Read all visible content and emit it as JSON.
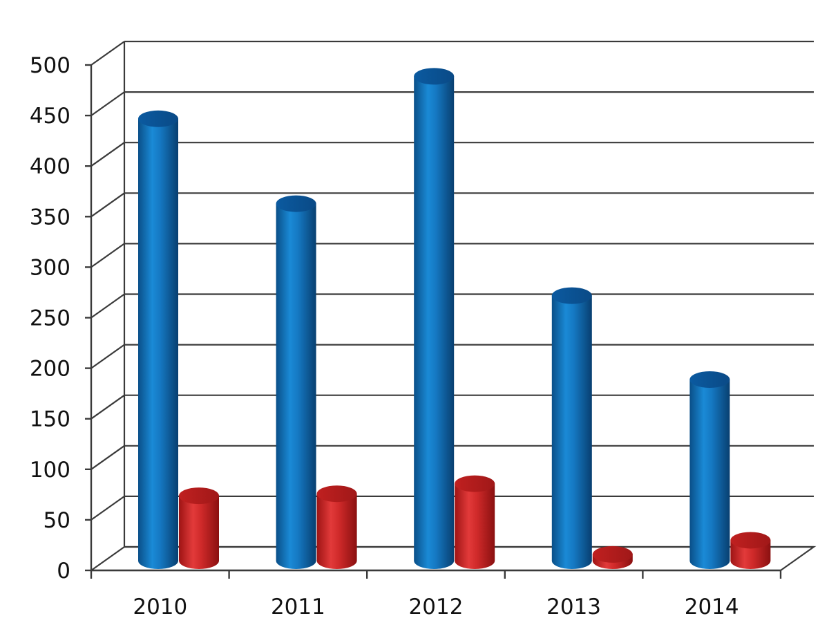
{
  "chart_data": {
    "type": "bar",
    "title": "",
    "xlabel": "",
    "ylabel": "",
    "categories": [
      "2010",
      "2011",
      "2012",
      "2013",
      "2014"
    ],
    "series": [
      {
        "values": [
          455,
          371,
          497,
          280,
          197
        ],
        "color": "#0e6fb8"
      },
      {
        "values": [
          82,
          84,
          94,
          24,
          38
        ],
        "color": "#d42a2a"
      }
    ],
    "ylim": [
      0,
      500
    ],
    "y_ticks": [
      0,
      50,
      100,
      150,
      200,
      250,
      300,
      350,
      400,
      450,
      500
    ],
    "y_tick_labels": [
      "0",
      "50",
      "100",
      "150",
      "200",
      "250",
      "300",
      "350",
      "400",
      "450",
      "500"
    ],
    "grid": true,
    "legend": "none",
    "style": "3d-cylinder"
  }
}
